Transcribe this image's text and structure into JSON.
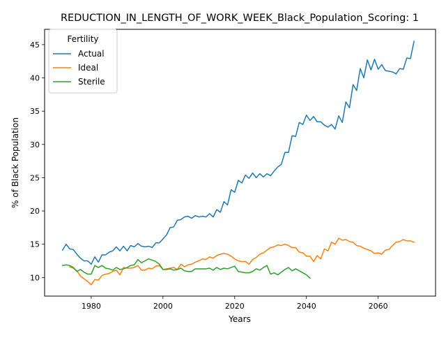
{
  "chart_data": {
    "type": "line",
    "title": "REDUCTION_IN_LENGTH_OF_WORK_WEEK_Black_Population_Scoring: 1",
    "xlabel": "Years",
    "ylabel": "% of Black Population",
    "xlim": [
      1967,
      2076
    ],
    "ylim": [
      7.2,
      47.3
    ],
    "xticks": [
      1980,
      2000,
      2020,
      2040,
      2060
    ],
    "yticks": [
      10,
      15,
      20,
      25,
      30,
      35,
      40,
      45
    ],
    "grid": false,
    "legend": {
      "title": "Fertility",
      "placement": "top-left"
    },
    "series": [
      {
        "name": "Actual",
        "color": "#1f77b4",
        "x": [
          1972,
          1973,
          1974,
          1975,
          1976,
          1977,
          1978,
          1979,
          1980,
          1981,
          1982,
          1983,
          1984,
          1985,
          1986,
          1987,
          1988,
          1989,
          1990,
          1991,
          1992,
          1993,
          1994,
          1995,
          1996,
          1997,
          1998,
          1999,
          2000,
          2001,
          2002,
          2003,
          2004,
          2005,
          2006,
          2007,
          2008,
          2009,
          2010,
          2011,
          2012,
          2013,
          2014,
          2015,
          2016,
          2017,
          2018,
          2019,
          2020,
          2021,
          2022,
          2023,
          2024,
          2025,
          2026,
          2027,
          2028,
          2029,
          2030,
          2031,
          2032,
          2033,
          2034,
          2035,
          2036,
          2037,
          2038,
          2039,
          2040,
          2041,
          2042,
          2043,
          2044,
          2045,
          2046,
          2047,
          2048,
          2049,
          2050,
          2051,
          2052,
          2053,
          2054,
          2055,
          2056,
          2057,
          2058,
          2059,
          2060,
          2061,
          2062,
          2063,
          2064,
          2065,
          2066,
          2067,
          2068,
          2069,
          2070
        ],
        "values": [
          14.1,
          15.0,
          14.3,
          14.2,
          13.5,
          12.9,
          12.5,
          12.5,
          12.0,
          13.1,
          12.3,
          13.4,
          13.4,
          13.8,
          14.0,
          14.6,
          14.0,
          14.7,
          14.0,
          14.8,
          14.6,
          15.1,
          14.7,
          14.6,
          14.7,
          14.5,
          15.2,
          15.2,
          15.8,
          16.4,
          17.5,
          17.6,
          18.6,
          18.7,
          19.1,
          19.2,
          18.9,
          19.3,
          19.1,
          19.2,
          19.1,
          19.6,
          19.1,
          20.2,
          19.8,
          21.4,
          20.9,
          23.2,
          22.8,
          24.6,
          24.2,
          25.4,
          24.9,
          25.7,
          25.0,
          25.6,
          25.1,
          25.6,
          25.3,
          26.0,
          26.6,
          27.0,
          28.8,
          28.8,
          31.3,
          31.2,
          33.3,
          33.0,
          34.4,
          33.6,
          34.2,
          33.4,
          33.4,
          32.9,
          32.6,
          33.0,
          32.3,
          34.3,
          33.3,
          36.4,
          35.5,
          39.0,
          38.1,
          41.4,
          40.0,
          42.7,
          41.2,
          42.8,
          41.3,
          42.0,
          41.1,
          41.0,
          40.9,
          40.6,
          41.4,
          41.3,
          43.0,
          42.9,
          45.5
        ]
      },
      {
        "name": "Ideal",
        "color": "#ff7f0e",
        "x": [
          1974,
          1975,
          1976,
          1977,
          1978,
          1979,
          1980,
          1981,
          1982,
          1983,
          1984,
          1985,
          1986,
          1987,
          1988,
          1989,
          1990,
          1991,
          1992,
          1993,
          1994,
          1995,
          1996,
          1997,
          1998,
          1999,
          2000,
          2001,
          2002,
          2003,
          2004,
          2005,
          2006,
          2007,
          2008,
          2009,
          2010,
          2011,
          2012,
          2013,
          2014,
          2015,
          2016,
          2017,
          2018,
          2019,
          2020,
          2021,
          2022,
          2023,
          2024,
          2025,
          2026,
          2027,
          2028,
          2029,
          2030,
          2031,
          2032,
          2033,
          2034,
          2035,
          2036,
          2037,
          2038,
          2039,
          2040,
          2041,
          2042,
          2043,
          2044,
          2045,
          2046,
          2047,
          2048,
          2049,
          2050,
          2051,
          2052,
          2053,
          2054,
          2055,
          2056,
          2057,
          2058,
          2059,
          2060,
          2061,
          2062,
          2063,
          2064,
          2065,
          2066,
          2067,
          2068,
          2069,
          2070
        ],
        "values": [
          11.6,
          11.4,
          11.0,
          10.2,
          9.8,
          9.4,
          8.9,
          9.7,
          9.6,
          10.3,
          10.5,
          10.6,
          10.9,
          11.1,
          10.4,
          11.5,
          11.4,
          11.4,
          11.5,
          11.8,
          11.1,
          11.1,
          11.4,
          11.3,
          11.7,
          11.8,
          11.2,
          11.3,
          11.4,
          11.5,
          11.2,
          12.0,
          11.6,
          11.9,
          12.0,
          12.3,
          12.5,
          12.8,
          12.7,
          13.1,
          12.9,
          13.3,
          13.5,
          13.6,
          13.5,
          13.2,
          12.8,
          12.5,
          12.4,
          12.4,
          12.0,
          12.7,
          13.0,
          13.5,
          13.7,
          14.1,
          14.5,
          14.6,
          14.9,
          14.8,
          15.0,
          14.8,
          14.5,
          14.5,
          13.8,
          13.7,
          13.2,
          13.2,
          12.4,
          13.3,
          12.8,
          14.3,
          14.0,
          15.3,
          15.0,
          15.9,
          15.6,
          15.7,
          15.4,
          15.3,
          14.8,
          14.7,
          14.4,
          14.2,
          14.0,
          13.6,
          13.7,
          13.5,
          14.1,
          14.2,
          14.8,
          15.3,
          15.4,
          15.7,
          15.5,
          15.5,
          15.3
        ]
      },
      {
        "name": "Sterile",
        "color": "#2ca02c",
        "x": [
          1972,
          1973,
          1974,
          1975,
          1976,
          1977,
          1978,
          1979,
          1980,
          1981,
          1982,
          1983,
          1984,
          1985,
          1986,
          1987,
          1988,
          1989,
          1990,
          1991,
          1992,
          1993,
          1994,
          1995,
          1996,
          1997,
          1998,
          1999,
          2000,
          2001,
          2002,
          2003,
          2004,
          2005,
          2006,
          2007,
          2008,
          2009,
          2010,
          2011,
          2012,
          2013,
          2014,
          2015,
          2016,
          2017,
          2018,
          2019,
          2020,
          2021,
          2022,
          2023,
          2024,
          2025,
          2026,
          2027,
          2028,
          2029,
          2030,
          2031,
          2032,
          2033,
          2034,
          2035,
          2036,
          2037,
          2038,
          2039,
          2040,
          2041
        ],
        "values": [
          11.8,
          11.9,
          11.8,
          11.5,
          10.9,
          11.2,
          10.8,
          10.5,
          10.5,
          11.8,
          11.5,
          11.8,
          11.4,
          11.3,
          11.1,
          11.5,
          11.2,
          11.3,
          11.5,
          11.8,
          11.9,
          12.7,
          12.2,
          12.5,
          12.8,
          12.6,
          12.4,
          12.0,
          11.2,
          11.2,
          11.3,
          11.1,
          11.2,
          11.4,
          11.0,
          10.9,
          10.9,
          11.3,
          11.3,
          11.3,
          11.3,
          11.4,
          11.1,
          11.5,
          11.2,
          11.4,
          11.3,
          11.5,
          11.7,
          10.9,
          10.8,
          10.7,
          10.7,
          10.9,
          11.3,
          11.1,
          11.5,
          11.8,
          10.5,
          10.7,
          10.4,
          10.8,
          11.2,
          11.5,
          11.0,
          11.3,
          11.0,
          10.7,
          10.4,
          9.9
        ]
      }
    ]
  }
}
